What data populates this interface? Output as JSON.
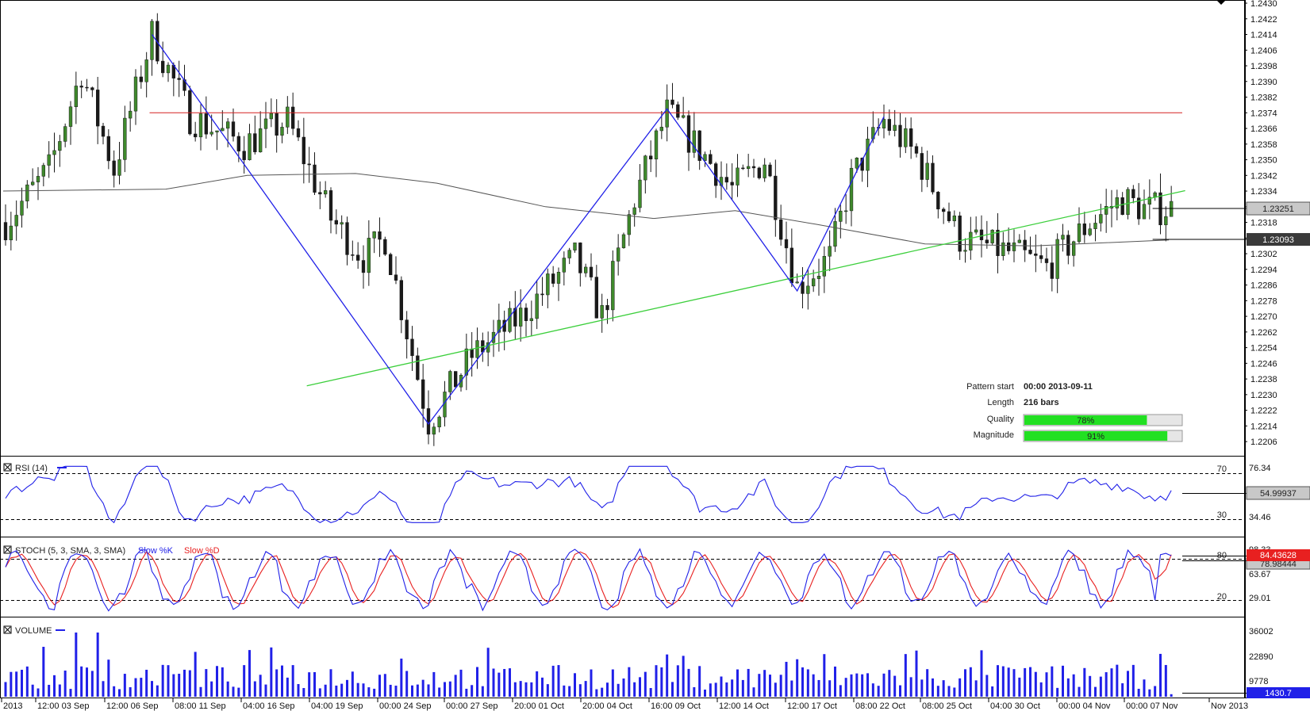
{
  "chart_data": [
    {
      "type": "candlestick",
      "panel": "price",
      "ylim": [
        1.2202,
        1.243
      ],
      "y_ticks": [
        "1.2430",
        "1.2422",
        "1.2414",
        "1.2406",
        "1.2398",
        "1.2390",
        "1.2382",
        "1.2374",
        "1.2366",
        "1.2358",
        "1.2350",
        "1.2342",
        "1.2334",
        "1.2326",
        "1.2318",
        "1.2310",
        "1.2302",
        "1.2294",
        "1.2286",
        "1.2278",
        "1.2270",
        "1.2262",
        "1.2254",
        "1.2246",
        "1.2238",
        "1.2230",
        "1.2222",
        "1.2214",
        "1.2206"
      ],
      "x_ticks": [
        "2013",
        "12:00 03 Sep",
        "12:00 06 Sep",
        "08:00 11 Sep",
        "04:00 16 Sep",
        "04:00 19 Sep",
        "00:00 24 Sep",
        "00:00 27 Sep",
        "20:00 01 Oct",
        "20:00 04 Oct",
        "16:00 09 Oct",
        "12:00 14 Oct",
        "12:00 17 Oct",
        "08:00 22 Oct",
        "08:00 25 Oct",
        "04:00 30 Oct",
        "00:00 04 Nov",
        "00:00 07 Nov",
        "Nov 2013"
      ],
      "current_price": "1.23251",
      "moving_average_value": "1.23093",
      "resistance_level": 1.2374,
      "support_trendline": [
        [
          0,
          1.22
        ],
        [
          216,
          1.2333
        ]
      ],
      "pattern_zigzag": [
        [
          27,
          1.2414
        ],
        [
          78,
          1.2215
        ],
        [
          122,
          1.2376
        ],
        [
          146,
          1.2283
        ],
        [
          162,
          1.2372
        ]
      ],
      "colors": {
        "bull": "#3f8a2c",
        "bear": "#1a1a1a",
        "resistance": "#d62020",
        "support": "#3ccf3c",
        "pattern": "#2020e8",
        "ma": "#555555"
      }
    },
    {
      "type": "line",
      "panel": "rsi",
      "title": "RSI (14)",
      "ylim": [
        22,
        82
      ],
      "levels": [
        {
          "label": "70",
          "value": 70
        },
        {
          "label": "30",
          "value": 30
        }
      ],
      "y_ticks": [
        "76.34",
        "34.46"
      ],
      "current_value": "54.99937",
      "colors": {
        "line": "#2020e8"
      }
    },
    {
      "type": "line",
      "panel": "stochastic",
      "title": "STOCH (5, 3, SMA, 3, SMA)",
      "legend": [
        "Slow %K",
        "Slow %D"
      ],
      "levels": [
        {
          "label": "80",
          "value": 80
        },
        {
          "label": "20",
          "value": 20
        }
      ],
      "y_ticks": [
        "98.33",
        "63.67",
        "29.01"
      ],
      "current_values": {
        "slow_k": "84.43628",
        "slow_d": "78.98444"
      },
      "colors": {
        "k": "#2020e8",
        "d": "#e82020"
      }
    },
    {
      "type": "bar",
      "panel": "volume",
      "title": "VOLUME",
      "y_ticks": [
        "36002",
        "22890",
        "9778"
      ],
      "current_value": "1430.7",
      "colors": {
        "bar": "#2020e8"
      }
    }
  ],
  "pattern_info": {
    "start_label": "Pattern start",
    "start_value": "00:00 2013-09-11",
    "length_label": "Length",
    "length_value": "216 bars",
    "quality_label": "Quality",
    "quality_value": "78%",
    "quality_fraction": 0.78,
    "magnitude_label": "Magnitude",
    "magnitude_value": "91%",
    "magnitude_fraction": 0.91
  }
}
